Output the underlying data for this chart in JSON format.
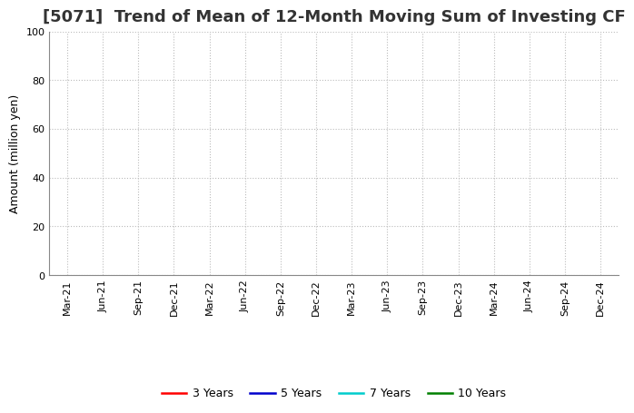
{
  "title": "[5071]  Trend of Mean of 12-Month Moving Sum of Investing CF",
  "ylabel": "Amount (million yen)",
  "ylim": [
    0,
    100
  ],
  "yticks": [
    0,
    20,
    40,
    60,
    80,
    100
  ],
  "x_labels": [
    "Mar-21",
    "Jun-21",
    "Sep-21",
    "Dec-21",
    "Mar-22",
    "Jun-22",
    "Sep-22",
    "Dec-22",
    "Mar-23",
    "Jun-23",
    "Sep-23",
    "Dec-23",
    "Mar-24",
    "Jun-24",
    "Sep-24",
    "Dec-24"
  ],
  "legend": [
    {
      "label": "3 Years",
      "color": "#FF0000"
    },
    {
      "label": "5 Years",
      "color": "#0000CC"
    },
    {
      "label": "7 Years",
      "color": "#00CCCC"
    },
    {
      "label": "10 Years",
      "color": "#008000"
    }
  ],
  "bg_color": "#FFFFFF",
  "grid_color": "#BBBBBB",
  "title_fontsize": 13,
  "title_fontweight": "bold",
  "axis_label_fontsize": 9,
  "tick_fontsize": 8,
  "legend_fontsize": 9
}
